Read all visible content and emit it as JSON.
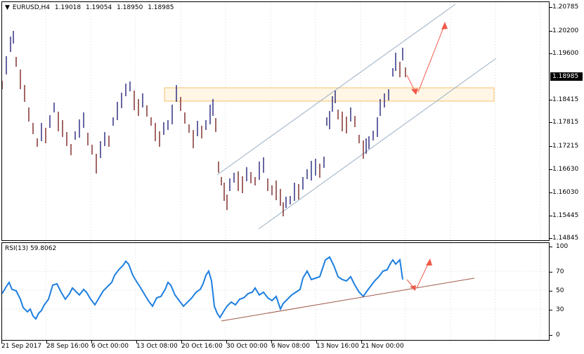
{
  "main": {
    "symbol": "EURUSD,H4",
    "open": "1.19018",
    "high": "1.19054",
    "low": "1.18950",
    "close": "1.18985",
    "current_price": "1.18985",
    "price_ticks": [
      "1.20785",
      "1.20200",
      "1.19600",
      "1.18415",
      "1.17815",
      "1.17215",
      "1.16630",
      "1.16030",
      "1.15445",
      "1.14845"
    ],
    "candle_color": "#000066",
    "bear_color": "#660000",
    "zone_color": "#f5c06a",
    "channel_color": "#9ab0c4",
    "arrow_color": "#f05a4a"
  },
  "rsi": {
    "label": "RSI(13) 59.8062",
    "levels": [
      "100",
      "70",
      "50",
      "30",
      "0"
    ],
    "line_color": "#1e7fe0",
    "trend_color": "#a05a4a"
  },
  "time_axis": [
    "21 Sep 2017",
    "28 Sep 16:00",
    "6 Oct 00:00",
    "13 Oct 08:00",
    "20 Oct 16:00",
    "30 Oct 00:00",
    "6 Nov 08:00",
    "13 Nov 16:00",
    "21 Nov 00:00"
  ]
}
